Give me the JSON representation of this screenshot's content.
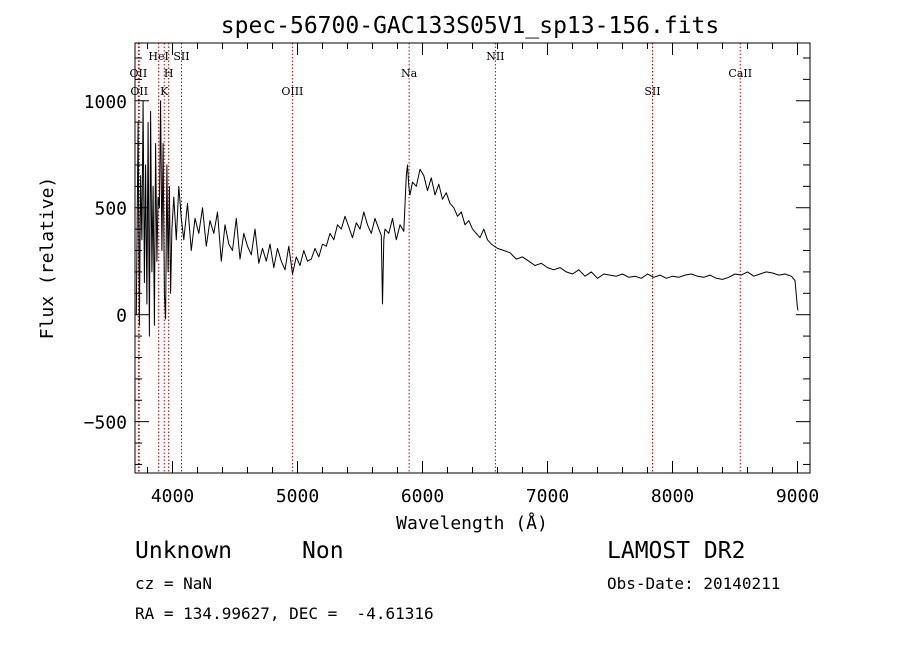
{
  "chart_data": {
    "type": "line",
    "title": "spec-56700-GAC133S05V1_sp13-156.fits",
    "xlabel": "Wavelength (Å)",
    "ylabel": "Flux (relative)",
    "xlim": [
      3700,
      9100
    ],
    "ylim": [
      -740,
      1270
    ],
    "x_ticks": [
      4000,
      5000,
      6000,
      7000,
      8000,
      9000
    ],
    "x_tick_labels": [
      "4000",
      "5000",
      "6000",
      "7000",
      "8000",
      "9000"
    ],
    "y_ticks": [
      -500,
      0,
      500,
      1000
    ],
    "y_tick_labels": [
      "−500",
      "0",
      "500",
      "1000"
    ],
    "grid": false,
    "line_color": "#000000",
    "marker_color": "#cc0000",
    "series": [
      {
        "x": [
          3710,
          3725,
          3735,
          3745,
          3755,
          3765,
          3775,
          3785,
          3795,
          3805,
          3815,
          3825,
          3835,
          3845,
          3855,
          3865,
          3875,
          3885,
          3895,
          3905,
          3915,
          3925,
          3935,
          3945,
          3955,
          3965,
          3975,
          3985,
          3995,
          4010,
          4030,
          4050,
          4070,
          4090,
          4120,
          4150,
          4180,
          4210,
          4240,
          4270,
          4300,
          4330,
          4360,
          4390,
          4420,
          4450,
          4480,
          4510,
          4540,
          4570,
          4600,
          4630,
          4660,
          4690,
          4720,
          4750,
          4780,
          4810,
          4840,
          4870,
          4900,
          4930,
          4960,
          4990,
          5020,
          5050,
          5080,
          5110,
          5140,
          5170,
          5200,
          5230,
          5260,
          5290,
          5320,
          5350,
          5380,
          5410,
          5440,
          5470,
          5500,
          5530,
          5560,
          5590,
          5620,
          5650,
          5670,
          5680,
          5690,
          5700,
          5730,
          5760,
          5790,
          5820,
          5850,
          5870,
          5880,
          5890,
          5900,
          5920,
          5950,
          5980,
          6010,
          6040,
          6070,
          6100,
          6130,
          6160,
          6190,
          6220,
          6250,
          6280,
          6310,
          6340,
          6370,
          6400,
          6430,
          6460,
          6490,
          6520,
          6550,
          6600,
          6650,
          6700,
          6750,
          6800,
          6850,
          6900,
          6950,
          7000,
          7050,
          7100,
          7150,
          7200,
          7250,
          7300,
          7350,
          7400,
          7450,
          7500,
          7550,
          7600,
          7650,
          7700,
          7750,
          7800,
          7850,
          7900,
          7950,
          8000,
          8050,
          8100,
          8150,
          8200,
          8250,
          8300,
          8350,
          8400,
          8450,
          8500,
          8550,
          8600,
          8650,
          8700,
          8750,
          8800,
          8850,
          8900,
          8950,
          8980,
          9000,
          9005
        ],
        "y": [
          0,
          900,
          -50,
          650,
          350,
          1000,
          150,
          700,
          50,
          900,
          -100,
          950,
          200,
          600,
          -50,
          800,
          250,
          550,
          500,
          1000,
          300,
          800,
          100,
          -20,
          700,
          200,
          600,
          100,
          400,
          550,
          350,
          600,
          450,
          350,
          520,
          300,
          450,
          380,
          500,
          320,
          440,
          380,
          480,
          250,
          420,
          330,
          300,
          450,
          260,
          380,
          320,
          280,
          400,
          240,
          310,
          250,
          330,
          220,
          310,
          250,
          210,
          320,
          190,
          270,
          230,
          300,
          250,
          260,
          310,
          270,
          330,
          320,
          380,
          350,
          420,
          400,
          460,
          410,
          360,
          430,
          400,
          480,
          420,
          380,
          450,
          400,
          370,
          50,
          350,
          400,
          380,
          450,
          350,
          420,
          390,
          650,
          700,
          600,
          560,
          620,
          600,
          680,
          650,
          580,
          640,
          560,
          610,
          540,
          570,
          520,
          500,
          460,
          480,
          420,
          440,
          400,
          380,
          360,
          400,
          350,
          330,
          310,
          300,
          290,
          260,
          270,
          250,
          230,
          240,
          220,
          210,
          220,
          200,
          190,
          210,
          180,
          200,
          170,
          190,
          185,
          180,
          190,
          175,
          180,
          170,
          190,
          175,
          185,
          170,
          180,
          175,
          185,
          190,
          180,
          175,
          185,
          170,
          165,
          175,
          190,
          185,
          200,
          180,
          190,
          200,
          195,
          185,
          190,
          180,
          160,
          30,
          20
        ]
      }
    ],
    "line_markers": [
      {
        "wavelength": 3727,
        "label": "OII",
        "row": 1
      },
      {
        "wavelength": 3734,
        "label": "OII",
        "row": 2
      },
      {
        "wavelength": 3889,
        "label": "HeI",
        "row": 0
      },
      {
        "wavelength": 3934,
        "label": "K",
        "row": 2
      },
      {
        "wavelength": 3969,
        "label": "H",
        "row": 1
      },
      {
        "wavelength": 4072,
        "label": "SII",
        "row": 0
      },
      {
        "wavelength": 4959,
        "label": "OIII",
        "row": 2
      },
      {
        "wavelength": 5893,
        "label": "Na",
        "row": 1
      },
      {
        "wavelength": 6583,
        "label": "NII",
        "row": 0
      },
      {
        "wavelength": 7840,
        "label": "SII",
        "row": 2
      },
      {
        "wavelength": 8542,
        "label": "CaII",
        "row": 1
      }
    ]
  },
  "info": {
    "object_class": "Unknown",
    "object_subclass": "Non",
    "survey": "LAMOST DR2",
    "cz": "cz = NaN",
    "obs_date": "Obs-Date: 20140211",
    "coords": "RA = 134.99627, DEC =  -4.61316"
  }
}
